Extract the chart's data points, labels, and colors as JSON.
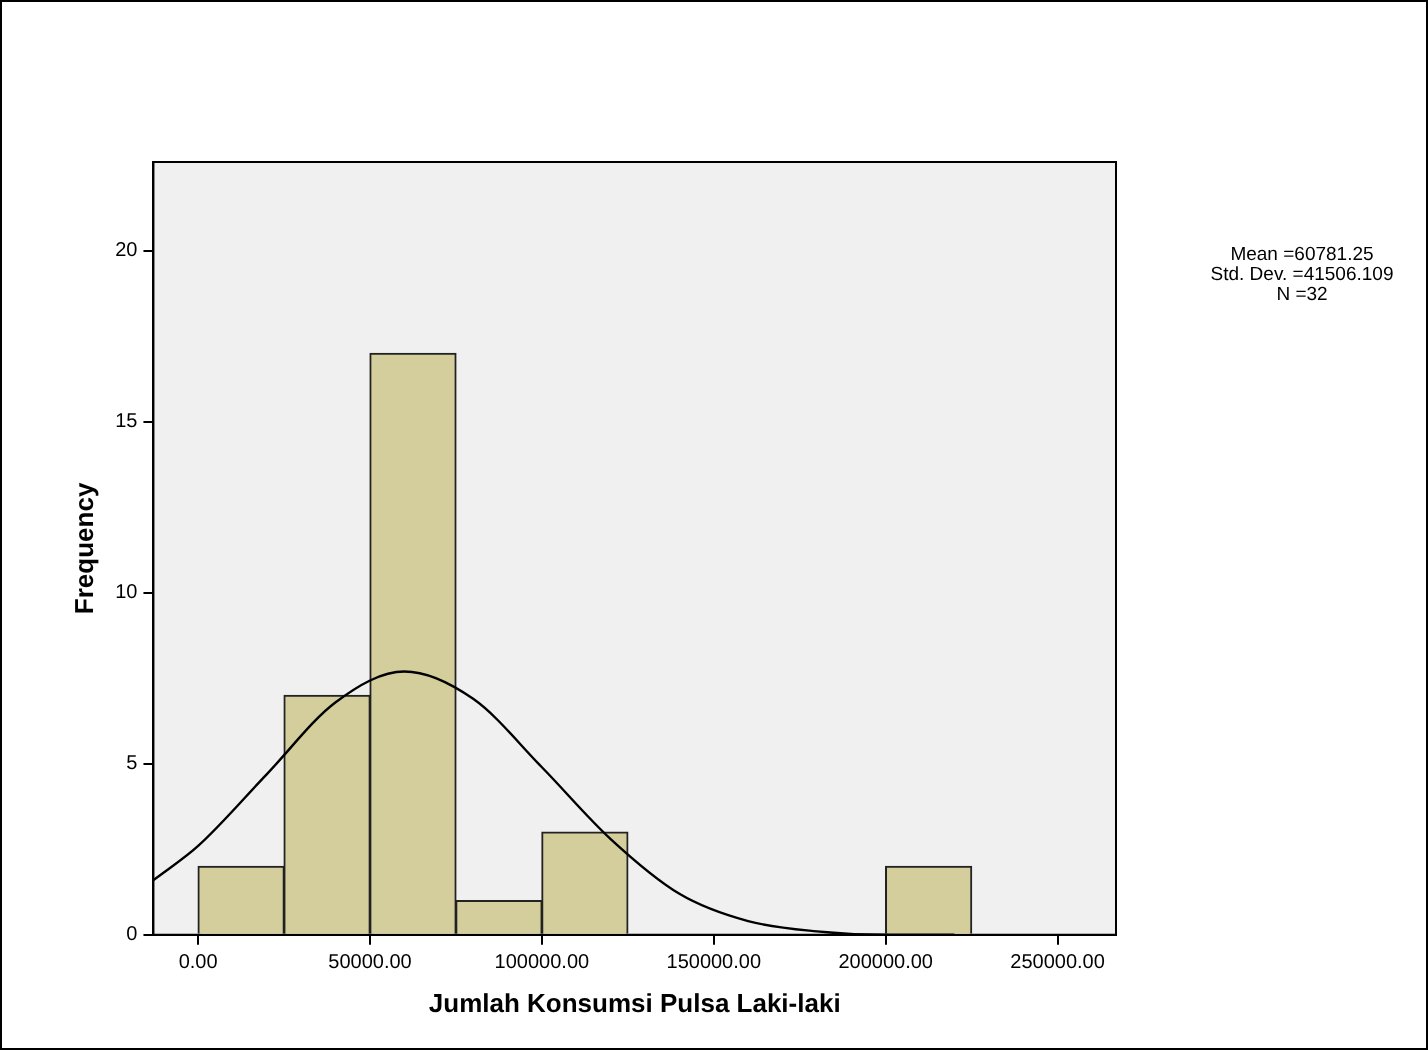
{
  "chart_data": {
    "type": "histogram",
    "xlabel": "Jumlah Konsumsi Pulsa Laki-laki",
    "ylabel": "Frequency",
    "annotations": [
      "Mean =60781.25",
      "Std. Dev. =41506.109",
      "N =32"
    ],
    "bins": [
      0,
      25000,
      50000,
      75000,
      100000,
      125000,
      150000,
      175000,
      200000,
      225000
    ],
    "series": [
      {
        "color": "#d3ce9c",
        "values": [
          2,
          7,
          17,
          1,
          3,
          0,
          0,
          0,
          2
        ]
      },
      {
        "type": "line",
        "color": "#000000",
        "x": [
          -13000,
          0,
          20000,
          40000,
          60000,
          80000,
          100000,
          120000,
          140000,
          160000,
          180000,
          200000,
          220000
        ],
        "values": [
          1.6,
          2.6,
          4.7,
          6.8,
          7.7,
          6.9,
          4.9,
          2.8,
          1.2,
          0.4,
          0.1,
          0,
          0
        ]
      }
    ],
    "xlim": [
      -13000,
      267000
    ],
    "ylim": [
      0,
      22.6
    ],
    "xticks": [
      {
        "value": 0,
        "label": "0.00"
      },
      {
        "value": 50000,
        "label": "50000.00"
      },
      {
        "value": 100000,
        "label": "100000.00"
      },
      {
        "value": 150000,
        "label": "150000.00"
      },
      {
        "value": 200000,
        "label": "200000.00"
      },
      {
        "value": 250000,
        "label": "250000.00"
      }
    ],
    "yticks": [
      0,
      5,
      10,
      15,
      20
    ],
    "grid": false,
    "legend": false,
    "marker": "none",
    "line_style": "solid"
  }
}
